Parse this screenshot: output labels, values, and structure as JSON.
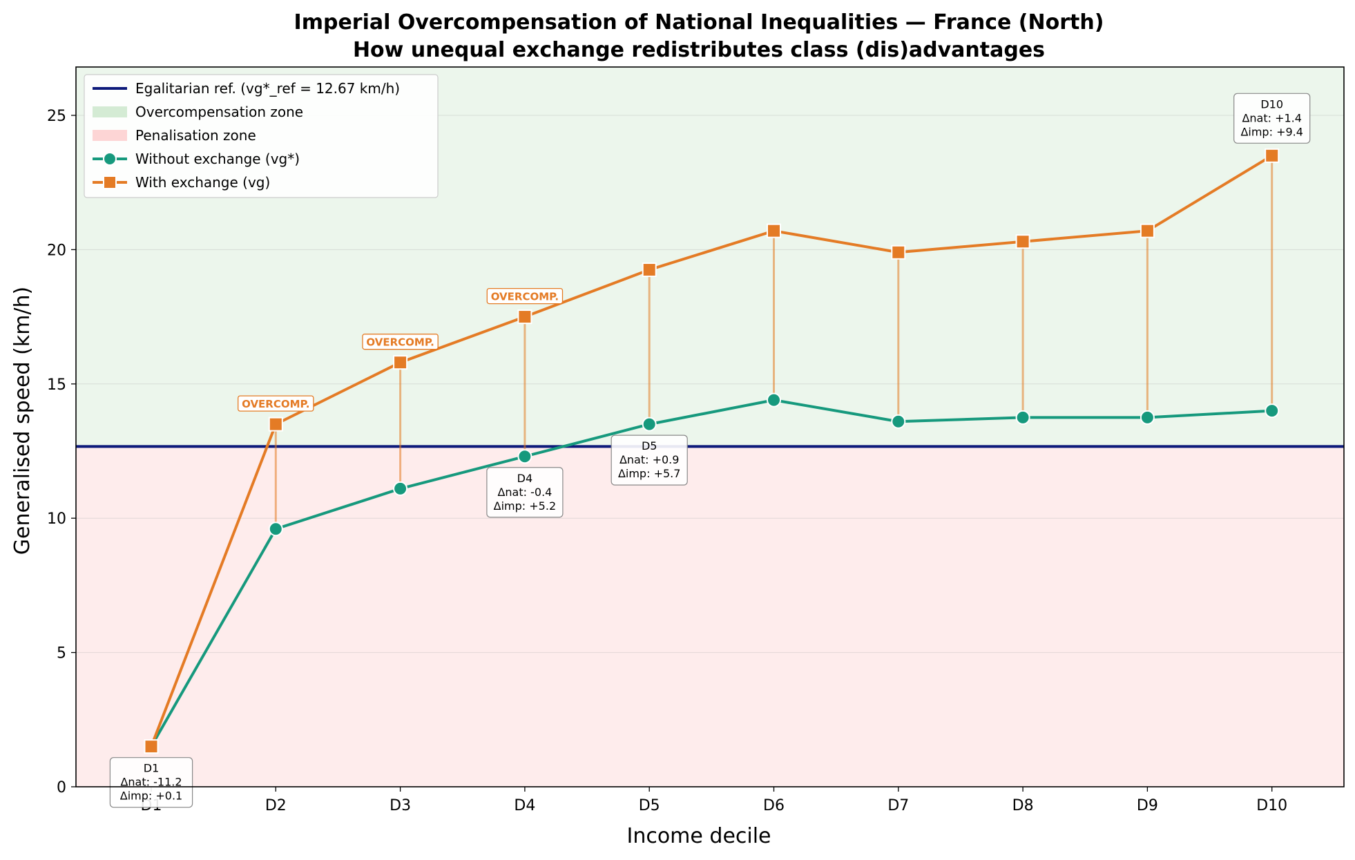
{
  "chart_data": {
    "type": "line",
    "title": "Imperial Overcompensation of National Inequalities — France (North)",
    "subtitle": "How unequal exchange redistributes class (dis)advantages",
    "xlabel": "Income decile",
    "ylabel": "Generalised speed (km/h)",
    "categories": [
      "D1",
      "D2",
      "D3",
      "D4",
      "D5",
      "D6",
      "D7",
      "D8",
      "D9",
      "D10"
    ],
    "ylim": [
      0,
      26.8
    ],
    "yticks": [
      0,
      5,
      10,
      15,
      20,
      25
    ],
    "grid": "horizontal",
    "legend_position": "top-left",
    "reference_line": {
      "value": 12.67,
      "label": "Egalitarian ref. (vg*_ref = 12.67 km/h)",
      "color": "#0d1a7a"
    },
    "zones": [
      {
        "label": "Overcompensation zone",
        "color": "#d4ebd4"
      },
      {
        "label": "Penalisation zone",
        "color": "#fdd5d5"
      }
    ],
    "series": [
      {
        "name": "Without exchange (vg*)",
        "marker": "circle",
        "color": "#16997d",
        "values": [
          1.5,
          9.6,
          11.1,
          12.3,
          13.5,
          14.4,
          13.6,
          13.75,
          13.75,
          14.0
        ]
      },
      {
        "name": "With exchange (vg)",
        "marker": "square",
        "color": "#e47b25",
        "values": [
          1.5,
          13.5,
          15.8,
          17.5,
          19.25,
          20.7,
          19.9,
          20.3,
          20.7,
          23.5
        ]
      }
    ],
    "annotations": [
      {
        "category": "D1",
        "lines": [
          "D1",
          "Δnat: -11.2",
          "Δimp: +0.1"
        ],
        "placement": "below"
      },
      {
        "category": "D4",
        "lines": [
          "D4",
          "Δnat: -0.4",
          "Δimp: +5.2"
        ],
        "placement": "below"
      },
      {
        "category": "D5",
        "lines": [
          "D5",
          "Δnat: +0.9",
          "Δimp: +5.7"
        ],
        "placement": "below"
      },
      {
        "category": "D10",
        "lines": [
          "D10",
          "Δnat: +1.4",
          "Δimp: +9.4"
        ],
        "placement": "above"
      }
    ],
    "flags": [
      {
        "category": "D2",
        "text": "OVERCOMP."
      },
      {
        "category": "D3",
        "text": "OVERCOMP."
      },
      {
        "category": "D4",
        "text": "OVERCOMP."
      }
    ]
  }
}
